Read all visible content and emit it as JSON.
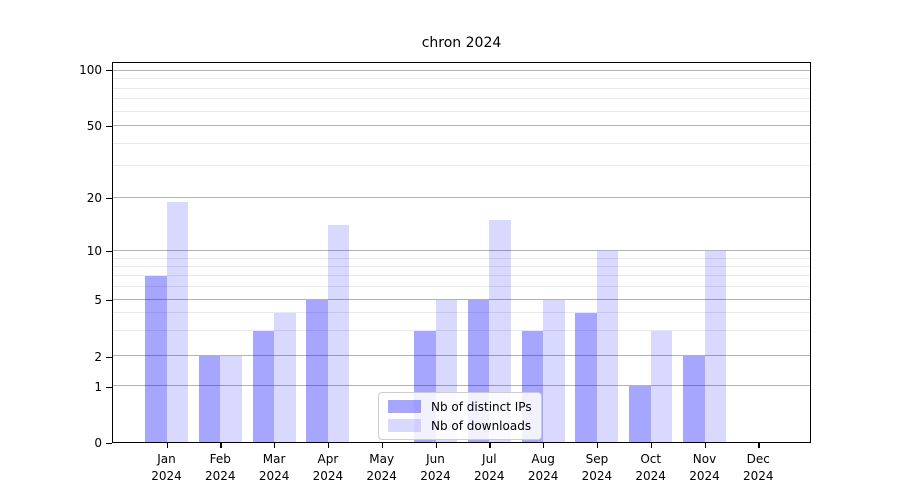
{
  "figure": {
    "background": "#ffffff"
  },
  "chart_data": {
    "type": "bar",
    "title": "chron 2024",
    "categories": [
      "Jan",
      "Feb",
      "Mar",
      "Apr",
      "May",
      "Jun",
      "Jul",
      "Aug",
      "Sep",
      "Oct",
      "Nov",
      "Dec"
    ],
    "category_year": "2024",
    "series": [
      {
        "name": "Nb of distinct IPs",
        "color": "#0000ff",
        "alpha": 0.35,
        "flat_color": "#a6a6ff",
        "values": [
          7,
          2,
          3,
          5,
          0,
          3,
          5,
          3,
          4,
          1,
          2,
          0
        ]
      },
      {
        "name": "Nb of downloads",
        "color": "#0000ff",
        "alpha": 0.15,
        "flat_color": "#d9d9ff",
        "values": [
          19,
          2,
          4,
          14,
          0,
          5,
          15,
          5,
          10,
          3,
          10,
          0
        ]
      }
    ],
    "xlabel": "",
    "ylabel": "",
    "yscale": "log-like",
    "ylim": [
      0,
      110
    ],
    "y_major_ticks": [
      0,
      1,
      2,
      5,
      10,
      20,
      50,
      100
    ],
    "y_minor_ticks": [
      3,
      4,
      6,
      7,
      8,
      9,
      30,
      40,
      60,
      70,
      80,
      90
    ],
    "grid": true,
    "major_grid_color": "#b2b2b2",
    "minor_grid_color": "#e9e9e9",
    "axis_color": "#000000",
    "legend": {
      "position": "lower center",
      "labels": [
        "Nb of distinct IPs",
        "Nb of downloads"
      ]
    }
  }
}
